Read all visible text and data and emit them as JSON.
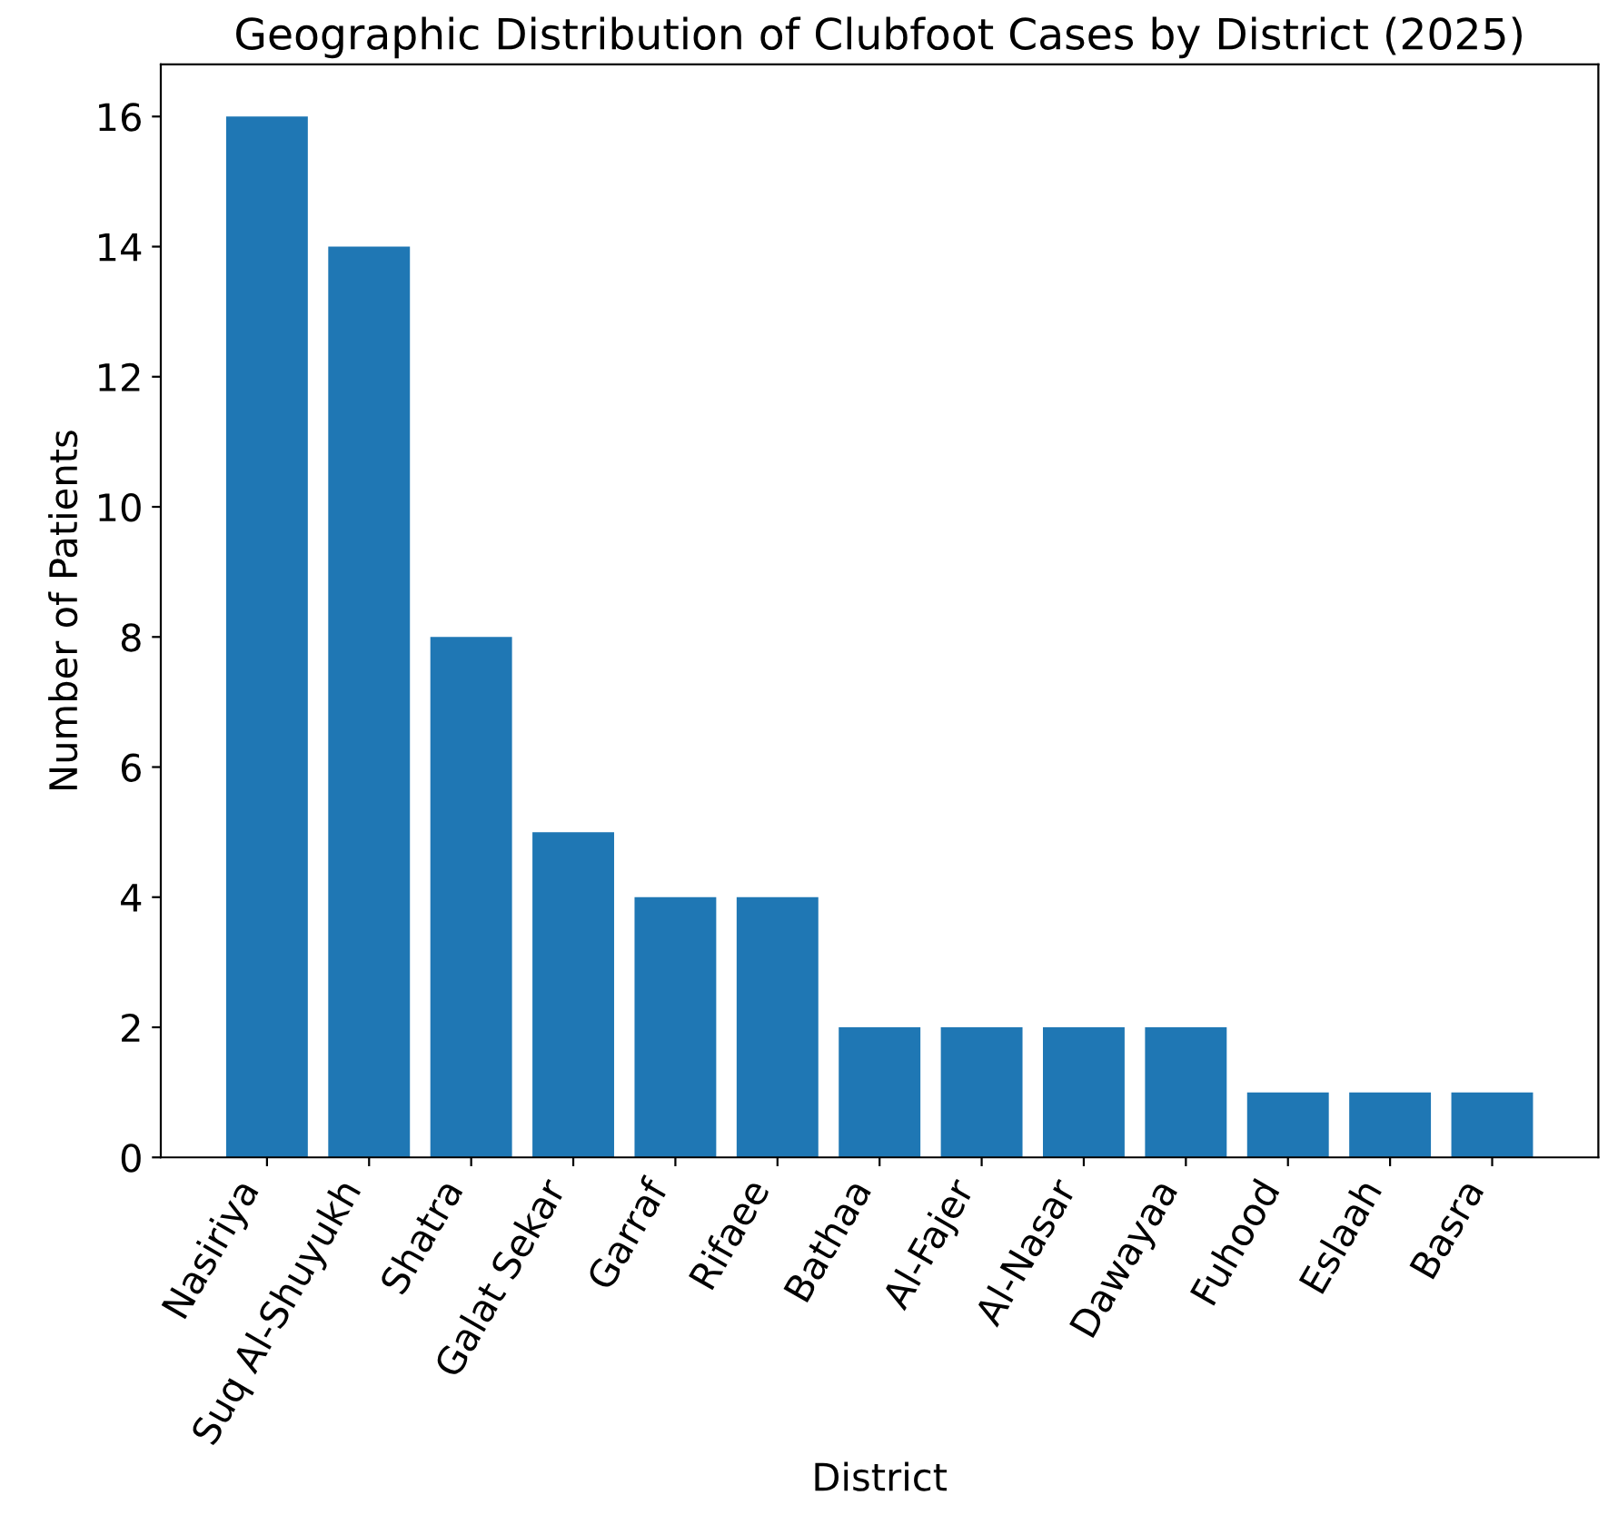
{
  "chart_data": {
    "type": "bar",
    "title": "Geographic Distribution of Clubfoot Cases by District (2025)",
    "xlabel": "District",
    "ylabel": "Number of Patients",
    "categories": [
      "Nasiriya",
      "Suq Al-Shuyukh",
      "Shatra",
      "Galat Sekar",
      "Garraf",
      "Rifaee",
      "Bathaa",
      "Al-Fajer",
      "Al-Nasar",
      "Dawayaa",
      "Fuhood",
      "Eslaah",
      "Basra"
    ],
    "values": [
      16,
      14,
      8,
      5,
      4,
      4,
      2,
      2,
      2,
      2,
      1,
      1,
      1
    ],
    "color": "#1f77b4",
    "ylim": [
      0,
      16.8
    ],
    "yticks": [
      0,
      2,
      4,
      6,
      8,
      10,
      12,
      14,
      16
    ],
    "grid": false,
    "legend": false
  }
}
